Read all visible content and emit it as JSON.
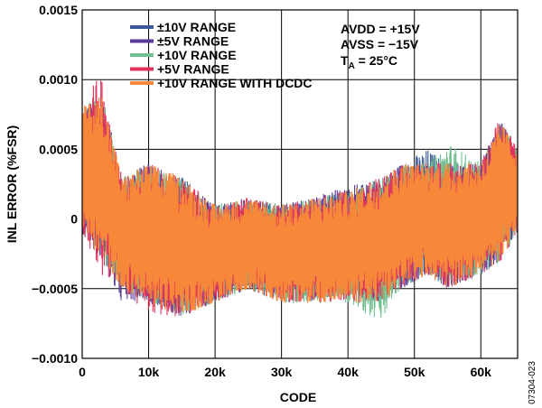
{
  "chart_data": {
    "type": "line",
    "title": "",
    "xlabel": "CODE",
    "ylabel": "INL ERROR (%FSR)",
    "xlim": [
      0,
      65535
    ],
    "ylim": [
      -0.001,
      0.0015
    ],
    "x_ticks": [
      0,
      10000,
      20000,
      30000,
      40000,
      50000,
      60000
    ],
    "x_tick_labels": [
      "0",
      "10k",
      "20k",
      "30k",
      "40k",
      "50k",
      "60k"
    ],
    "y_ticks": [
      -0.001,
      -0.0005,
      0,
      0.0005,
      0.001,
      0.0015
    ],
    "y_tick_labels": [
      "−0.0010",
      "−0.0005",
      "0",
      "0.0005",
      "0.0010",
      "0.0015"
    ],
    "grid": true,
    "legend_position": "top-left",
    "conditions": [
      "AVDD = +15V",
      "AVSS = −15V",
      "T",
      "A",
      " = 25°C"
    ],
    "figure_id": "07304-023",
    "series": [
      {
        "name": "±10V RANGE",
        "color": "#3b5998",
        "x": [
          0,
          3000,
          6000,
          10000,
          15000,
          20000,
          25000,
          30000,
          35000,
          40000,
          45000,
          48000,
          52000,
          55000,
          60000,
          63000,
          65535
        ],
        "upper": [
          0.0008,
          0.0009,
          0.0003,
          0.00035,
          0.0003,
          0.0001,
          0.00015,
          0.0001,
          0.00015,
          0.0002,
          0.0003,
          0.0004,
          0.0005,
          0.0004,
          0.0004,
          0.0007,
          0.0005
        ],
        "lower": [
          -0.0001,
          -0.0003,
          -0.0005,
          -0.0006,
          -0.0007,
          -0.0006,
          -0.0005,
          -0.0006,
          -0.0006,
          -0.00055,
          -0.0006,
          -0.0005,
          -0.0004,
          -0.0005,
          -0.0004,
          -0.0003,
          -0.0001
        ]
      },
      {
        "name": "±5V RANGE",
        "color": "#5b3a9b",
        "x": [
          0,
          3000,
          6000,
          10000,
          15000,
          20000,
          25000,
          30000,
          35000,
          40000,
          45000,
          48000,
          52000,
          55000,
          60000,
          63000,
          65535
        ],
        "upper": [
          0.0008,
          0.00085,
          0.0003,
          0.0004,
          0.0003,
          0.0001,
          0.00015,
          0.0001,
          0.00015,
          0.00025,
          0.00025,
          0.0004,
          0.0004,
          0.0004,
          0.0004,
          0.0007,
          0.0005
        ],
        "lower": [
          -0.0001,
          -0.0003,
          -0.0006,
          -0.0006,
          -0.0007,
          -0.0006,
          -0.0005,
          -0.0005,
          -0.0006,
          -0.0005,
          -0.0006,
          -0.0005,
          -0.0004,
          -0.0005,
          -0.0004,
          -0.0003,
          -0.0001
        ]
      },
      {
        "name": "+10V RANGE",
        "color": "#6fbf8f",
        "x": [
          0,
          3000,
          6000,
          10000,
          15000,
          20000,
          25000,
          30000,
          35000,
          40000,
          45000,
          48000,
          52000,
          55000,
          60000,
          63000,
          65535
        ],
        "upper": [
          0.0008,
          0.0009,
          0.0003,
          0.0004,
          0.0003,
          0.0001,
          0.00015,
          0.0001,
          0.00015,
          0.0002,
          0.0003,
          0.0004,
          0.0004,
          0.00055,
          0.0004,
          0.0007,
          0.0005
        ],
        "lower": [
          -0.0001,
          -0.0003,
          -0.0005,
          -0.0006,
          -0.0007,
          -0.0006,
          -0.0005,
          -0.0006,
          -0.0006,
          -0.0006,
          -0.00075,
          -0.0005,
          -0.0004,
          -0.0005,
          -0.0004,
          -0.0003,
          -0.0001
        ]
      },
      {
        "name": "+5V RANGE",
        "color": "#e0325a",
        "x": [
          0,
          3000,
          6000,
          10000,
          15000,
          20000,
          25000,
          30000,
          35000,
          40000,
          45000,
          48000,
          52000,
          55000,
          60000,
          63000,
          65535
        ],
        "upper": [
          0.00085,
          0.00105,
          0.0003,
          0.0004,
          0.0003,
          0.0001,
          0.00015,
          0.0001,
          0.00015,
          0.0002,
          0.0003,
          0.0004,
          0.0004,
          0.0004,
          0.0004,
          0.00075,
          0.0005
        ],
        "lower": [
          -0.0001,
          -0.0004,
          -0.0005,
          -0.0007,
          -0.0007,
          -0.0006,
          -0.0005,
          -0.0006,
          -0.0006,
          -0.0006,
          -0.0006,
          -0.0005,
          -0.0004,
          -0.0005,
          -0.0004,
          -0.0003,
          -0.0001
        ]
      },
      {
        "name": "+10V RANGE WITH DCDC",
        "color": "#f7883a",
        "x": [
          0,
          3000,
          6000,
          10000,
          15000,
          20000,
          25000,
          30000,
          35000,
          40000,
          45000,
          48000,
          52000,
          55000,
          60000,
          63000,
          65535
        ],
        "upper": [
          0.0008,
          0.0009,
          0.0003,
          0.0004,
          0.0003,
          0.0001,
          0.00015,
          0.0001,
          0.00015,
          0.0002,
          0.0003,
          0.0004,
          0.0004,
          0.0004,
          0.0004,
          0.0007,
          0.0005
        ],
        "lower": [
          -0.0001,
          -0.0003,
          -0.0005,
          -0.0006,
          -0.0007,
          -0.0006,
          -0.0005,
          -0.0006,
          -0.0006,
          -0.0006,
          -0.0006,
          -0.0005,
          -0.0004,
          -0.0005,
          -0.0004,
          -0.0003,
          -0.0001
        ]
      }
    ]
  }
}
